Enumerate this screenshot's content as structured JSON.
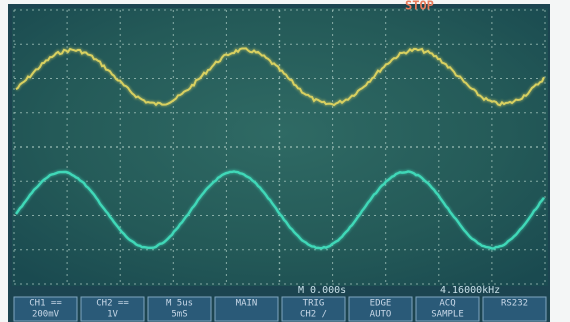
{
  "status": {
    "run_state": "STOP",
    "time_offset": "M 0.000s",
    "frequency": "4.16000kHz"
  },
  "menu": [
    {
      "label": "CH1 ==",
      "value": "200mV"
    },
    {
      "label": "CH2 ==",
      "value": "1V"
    },
    {
      "label": "M 5us",
      "value": "5mS"
    },
    {
      "label": "MAIN"
    },
    {
      "label": "TRIG",
      "value": "CH2 /"
    },
    {
      "label": "EDGE",
      "value": "AUTO"
    },
    {
      "label": "ACQ",
      "value": "SAMPLE"
    },
    {
      "label": "RS232"
    }
  ]
}
